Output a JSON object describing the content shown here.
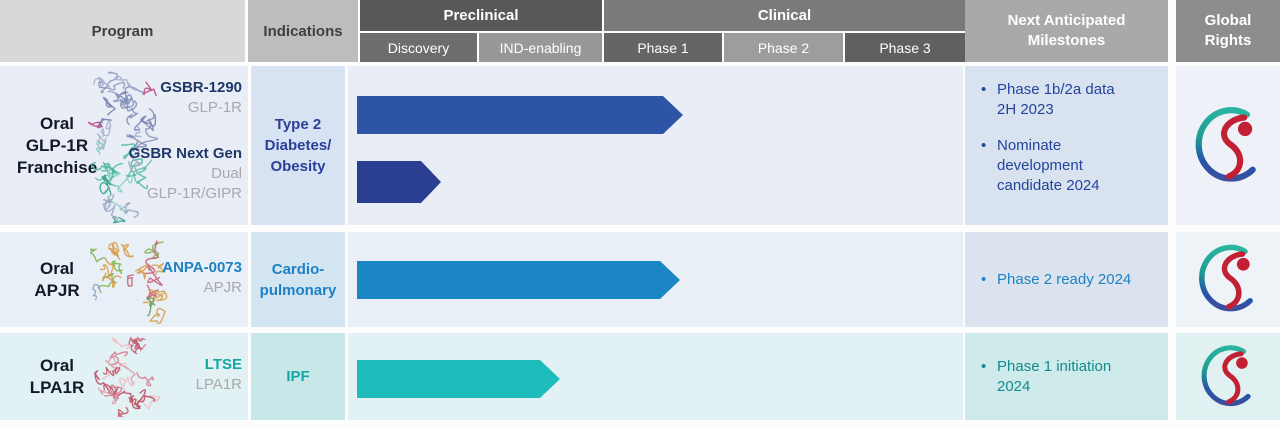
{
  "header": {
    "program": "Program",
    "indications": "Indications",
    "preclinical": "Preclinical",
    "clinical": "Clinical",
    "discovery": "Discovery",
    "ind_enabling": "IND-enabling",
    "phase1": "Phase 1",
    "phase2": "Phase 2",
    "phase3": "Phase 3",
    "milestones": "Next Anticipated Milestones",
    "global_rights": "Global Rights"
  },
  "rows": [
    {
      "program_label": "Oral\nGLP-1R\nFranchise",
      "assets": [
        {
          "name": "GSBR-1290",
          "target": "GLP-1R",
          "stage_reached": "Phase 1"
        },
        {
          "name": "GSBR Next Gen",
          "target": "Dual\nGLP-1R/GIPR",
          "stage_reached": "Discovery"
        }
      ],
      "indication": "Type 2\nDiabetes/\nObesity",
      "milestones": [
        {
          "text": "Phase 1b/2a data\n2H 2023"
        },
        {
          "text": "Nominate\ndevelopment\ncandidate 2024"
        }
      ],
      "proteins": [
        {
          "palette": [
            "#8b94ba",
            "#6f7cac",
            "#a3abc9",
            "#b4437f",
            "#7d88b6"
          ],
          "seed": 7
        },
        {
          "palette": [
            "#49b796",
            "#2f9f85",
            "#86cfc0",
            "#9aa6c6",
            "#5fc0a8"
          ],
          "seed": 13
        }
      ]
    },
    {
      "program_label": "Oral\nAPJR",
      "assets": [
        {
          "name": "ANPA-0073",
          "target": "APJR",
          "stage_reached": "Phase 1"
        }
      ],
      "indication": "Cardio-\npulmonary",
      "milestones": [
        {
          "text": "Phase 2 ready 2024"
        }
      ],
      "proteins": [
        {
          "palette": [
            "#79b24b",
            "#d89a3e",
            "#c65a6e",
            "#8aa2c2",
            "#5a9a55"
          ],
          "seed": 21
        }
      ]
    },
    {
      "program_label": "Oral\nLPA1R",
      "assets": [
        {
          "name": "LTSE",
          "target": "LPA1R",
          "stage_reached": "IND-enabling"
        }
      ],
      "indication": "IPF",
      "milestones": [
        {
          "text": "Phase 1 initiation\n2024"
        }
      ],
      "proteins": [
        {
          "palette": [
            "#e09aa7",
            "#d37589",
            "#c25468",
            "#eebcc4",
            "#b8475c"
          ],
          "seed": 31
        }
      ]
    }
  ],
  "bullet_glyph": "•",
  "colors": {
    "arrow_gsbr1290": "#2e55a5",
    "arrow_next_gen": "#2a3f92",
    "arrow_anpa0073": "#1b84c2",
    "arrow_ltse": "#1ebdbb",
    "navy_asset_text": "#1f3868",
    "royal_indication_text": "#2b3f97",
    "blue_text": "#1e81c4",
    "teal_text": "#13a7a4",
    "teal_milestone_text": "#128b8f",
    "gray_target_text": "#a9a9a9",
    "logo_red": "#c32033",
    "logo_teal": "#2bb5a0",
    "logo_blue": "#2553a8"
  }
}
